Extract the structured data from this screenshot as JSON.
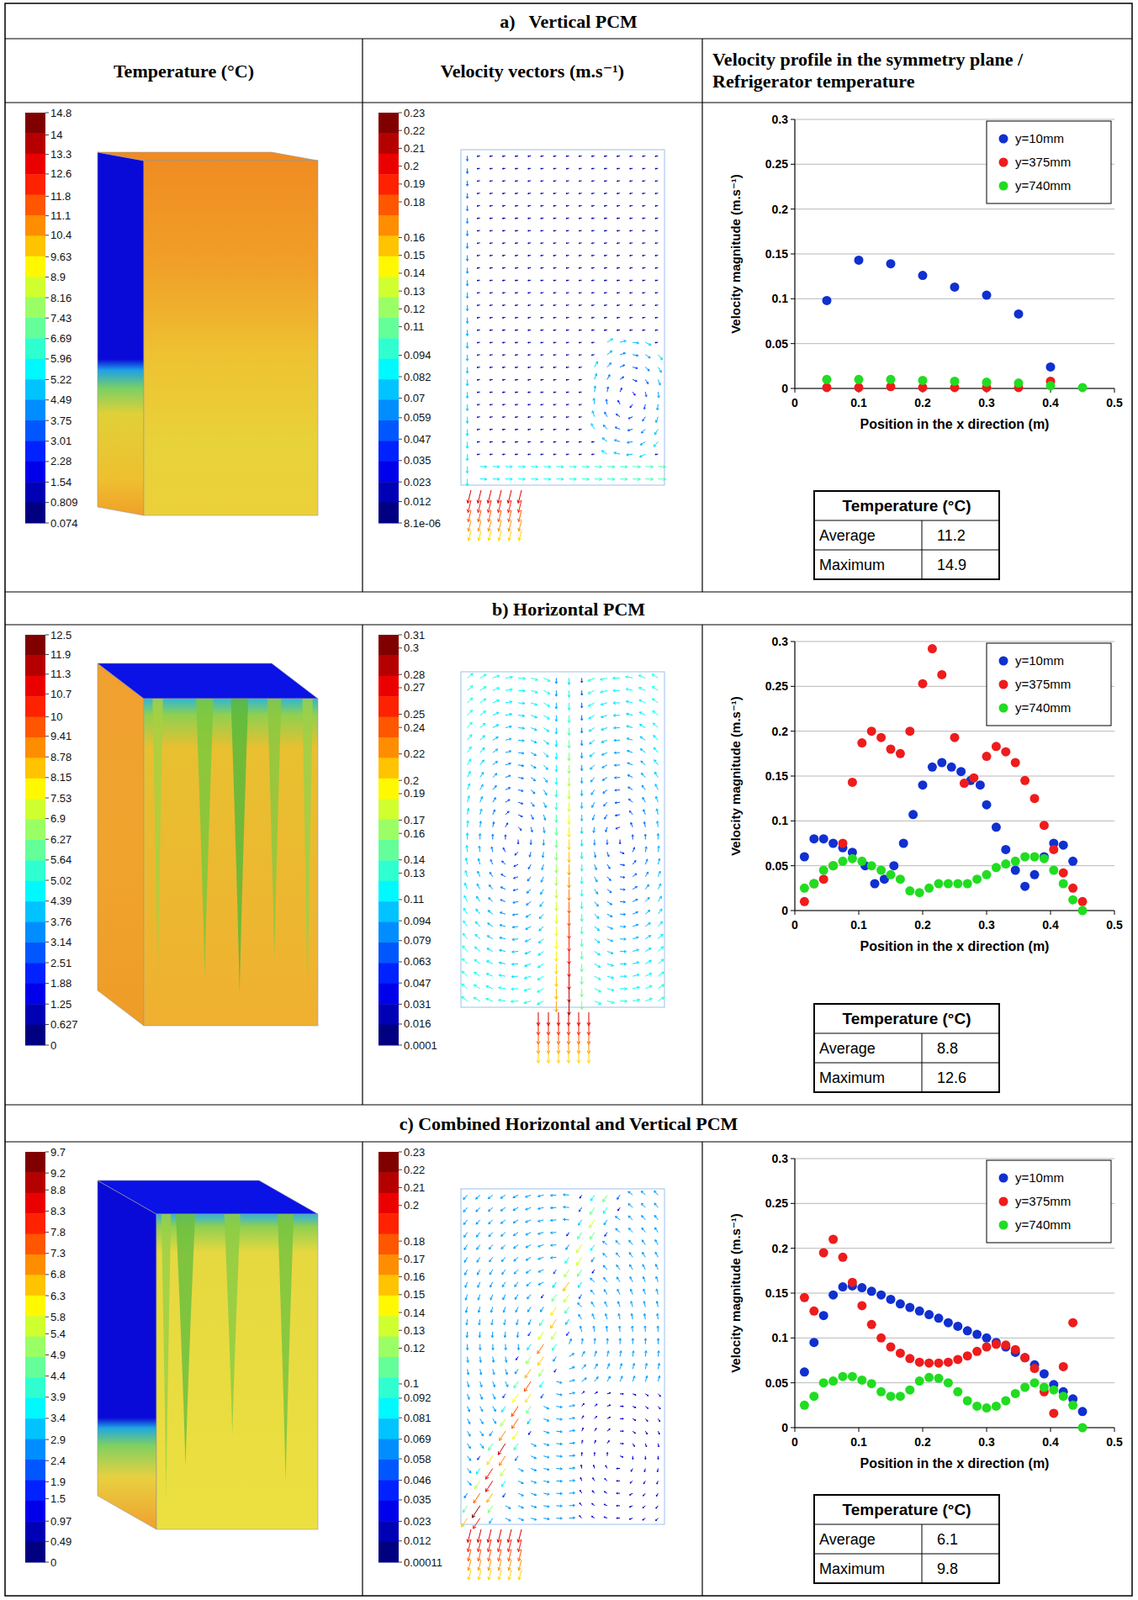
{
  "column_heads": [
    "Temperature (°C)",
    "Velocity vectors (m.s⁻¹)",
    "Velocity profile in the symmetry plane / Refrigerator temperature"
  ],
  "panels": [
    {
      "title": "a)   Vertical PCM",
      "temperature_colorbar": {
        "range": [
          0.074,
          14.8
        ],
        "ticks": [
          14.8,
          14,
          13.3,
          12.6,
          11.8,
          11.1,
          10.4,
          9.63,
          8.9,
          8.16,
          7.43,
          6.69,
          5.96,
          5.22,
          4.49,
          3.75,
          3.01,
          2.28,
          1.54,
          0.809,
          0.074
        ]
      },
      "velocity_colorbar": {
        "range": [
          8.1e-06,
          0.23
        ],
        "ticks": [
          0.23,
          0.22,
          0.21,
          0.2,
          0.19,
          0.18,
          0.16,
          0.15,
          0.14,
          0.13,
          0.12,
          0.11,
          0.094,
          0.082,
          0.07,
          0.059,
          0.047,
          0.035,
          0.023,
          0.012,
          {
            "value": 8.1e-06,
            "label": "8.1e-06"
          }
        ]
      },
      "table": {
        "header": "Temperature (°C)",
        "rows": [
          {
            "label": "Average",
            "value": 11.2
          },
          {
            "label": "Maximum",
            "value": 14.9
          }
        ]
      }
    },
    {
      "title": "b) Horizontal PCM",
      "temperature_colorbar": {
        "range": [
          0,
          12.5
        ],
        "ticks": [
          12.5,
          11.9,
          11.3,
          10.7,
          10,
          9.41,
          8.78,
          8.15,
          7.53,
          6.9,
          6.27,
          5.64,
          5.02,
          4.39,
          3.76,
          3.14,
          2.51,
          1.88,
          1.25,
          0.627,
          0
        ]
      },
      "velocity_colorbar": {
        "range": [
          0.0001,
          0.31
        ],
        "ticks": [
          0.31,
          0.3,
          0.28,
          0.27,
          0.25,
          0.24,
          0.22,
          0.2,
          0.19,
          0.17,
          0.16,
          0.14,
          0.13,
          0.11,
          0.094,
          0.079,
          0.063,
          0.047,
          0.031,
          0.016,
          0.0001
        ]
      },
      "table": {
        "header": "Temperature (°C)",
        "rows": [
          {
            "label": "Average",
            "value": 8.8
          },
          {
            "label": "Maximum",
            "value": 12.6
          }
        ]
      }
    },
    {
      "title": "c) Combined Horizontal and Vertical PCM",
      "temperature_colorbar": {
        "range": [
          0,
          9.7
        ],
        "ticks": [
          9.7,
          9.2,
          8.8,
          8.3,
          7.8,
          7.3,
          6.8,
          6.3,
          5.8,
          5.4,
          4.9,
          4.4,
          3.9,
          3.4,
          2.9,
          2.4,
          1.9,
          1.5,
          0.97,
          0.49,
          0
        ]
      },
      "velocity_colorbar": {
        "range": [
          0.00011,
          0.23
        ],
        "ticks": [
          0.23,
          0.22,
          0.21,
          0.2,
          0.18,
          0.17,
          0.16,
          0.15,
          0.14,
          0.13,
          0.12,
          0.1,
          0.092,
          0.081,
          0.069,
          0.058,
          0.046,
          0.035,
          0.023,
          0.012,
          0.00011
        ]
      },
      "table": {
        "header": "Temperature (°C)",
        "rows": [
          {
            "label": "Average",
            "value": 6.1
          },
          {
            "label": "Maximum",
            "value": 9.8
          }
        ]
      }
    }
  ],
  "chart_data": [
    {
      "type": "scatter",
      "x_label": "Position in the x direction (m)",
      "y_label": "Velocity magnitude (m.s⁻¹)",
      "xlim": [
        0,
        0.5
      ],
      "xticks": [
        0,
        0.1,
        0.2,
        0.3,
        0.4,
        0.5
      ],
      "ylim": [
        0,
        0.3
      ],
      "yticks": [
        0,
        0.05,
        0.1,
        0.15,
        0.2,
        0.25,
        0.3
      ],
      "grid": true,
      "legend": "upper right",
      "series": [
        {
          "name": "y=10mm",
          "color": "#1030d0",
          "marker": "circle",
          "x": [
            0.05,
            0.1,
            0.15,
            0.2,
            0.25,
            0.3,
            0.35,
            0.4
          ],
          "values": [
            0.098,
            0.143,
            0.139,
            0.126,
            0.113,
            0.104,
            0.083,
            0.024
          ]
        },
        {
          "name": "y=375mm",
          "color": "#ee1c1c",
          "marker": "circle",
          "x": [
            0.05,
            0.1,
            0.15,
            0.2,
            0.25,
            0.3,
            0.35,
            0.4
          ],
          "values": [
            0.001,
            0.001,
            0.002,
            0.001,
            0.001,
            0.001,
            0.001,
            0.008
          ]
        },
        {
          "name": "y=740mm",
          "color": "#20dd20",
          "marker": "circle",
          "x": [
            0.05,
            0.1,
            0.15,
            0.2,
            0.25,
            0.3,
            0.35,
            0.4,
            0.45
          ],
          "values": [
            0.01,
            0.01,
            0.01,
            0.009,
            0.008,
            0.007,
            0.006,
            0.003,
            0.001
          ]
        }
      ]
    },
    {
      "type": "scatter",
      "x_label": "Position in the x direction (m)",
      "y_label": "Velocity magnitude (m.s⁻¹)",
      "xlim": [
        0,
        0.5
      ],
      "xticks": [
        0,
        0.1,
        0.2,
        0.3,
        0.4,
        0.5
      ],
      "ylim": [
        0,
        0.3
      ],
      "yticks": [
        0,
        0.05,
        0.1,
        0.15,
        0.2,
        0.25,
        0.3
      ],
      "grid": true,
      "legend": "upper right",
      "series": [
        {
          "name": "y=10mm",
          "color": "#1030d0",
          "marker": "circle",
          "x": [
            0.015,
            0.03,
            0.045,
            0.06,
            0.075,
            0.09,
            0.11,
            0.125,
            0.14,
            0.155,
            0.17,
            0.185,
            0.2,
            0.215,
            0.23,
            0.245,
            0.26,
            0.275,
            0.29,
            0.3,
            0.315,
            0.33,
            0.345,
            0.36,
            0.375,
            0.39,
            0.405,
            0.42,
            0.435
          ],
          "values": [
            0.06,
            0.08,
            0.08,
            0.075,
            0.07,
            0.065,
            0.05,
            0.03,
            0.035,
            0.05,
            0.075,
            0.107,
            0.14,
            0.16,
            0.165,
            0.16,
            0.155,
            0.145,
            0.14,
            0.118,
            0.093,
            0.068,
            0.045,
            0.027,
            0.04,
            0.06,
            0.075,
            0.073,
            0.055
          ]
        },
        {
          "name": "y=375mm",
          "color": "#ee1c1c",
          "marker": "circle",
          "x": [
            0.015,
            0.03,
            0.045,
            0.06,
            0.075,
            0.09,
            0.105,
            0.12,
            0.135,
            0.15,
            0.165,
            0.18,
            0.2,
            0.215,
            0.23,
            0.25,
            0.265,
            0.28,
            0.3,
            0.315,
            0.33,
            0.345,
            0.36,
            0.375,
            0.39,
            0.405,
            0.42,
            0.435,
            0.45
          ],
          "values": [
            0.01,
            0.03,
            0.035,
            0.05,
            0.075,
            0.143,
            0.187,
            0.2,
            0.193,
            0.18,
            0.175,
            0.2,
            0.253,
            0.292,
            0.263,
            0.193,
            0.142,
            0.148,
            0.172,
            0.183,
            0.177,
            0.165,
            0.145,
            0.125,
            0.095,
            0.068,
            0.042,
            0.025,
            0.01
          ]
        },
        {
          "name": "y=740mm",
          "color": "#20dd20",
          "marker": "circle",
          "x": [
            0.015,
            0.03,
            0.045,
            0.06,
            0.075,
            0.09,
            0.105,
            0.12,
            0.135,
            0.15,
            0.165,
            0.18,
            0.195,
            0.21,
            0.225,
            0.24,
            0.255,
            0.27,
            0.285,
            0.3,
            0.315,
            0.33,
            0.345,
            0.36,
            0.375,
            0.39,
            0.405,
            0.42,
            0.435,
            0.45
          ],
          "values": [
            0.025,
            0.03,
            0.045,
            0.05,
            0.055,
            0.058,
            0.055,
            0.05,
            0.045,
            0.04,
            0.035,
            0.022,
            0.02,
            0.025,
            0.03,
            0.03,
            0.03,
            0.03,
            0.035,
            0.04,
            0.048,
            0.052,
            0.055,
            0.06,
            0.06,
            0.058,
            0.045,
            0.03,
            0.012,
            0
          ]
        }
      ]
    },
    {
      "type": "scatter",
      "x_label": "Position in the x direction (m)",
      "y_label": "Velocity magnitude (m.s⁻¹)",
      "xlim": [
        0,
        0.5
      ],
      "xticks": [
        0,
        0.1,
        0.2,
        0.3,
        0.4,
        0.5
      ],
      "ylim": [
        0,
        0.3
      ],
      "yticks": [
        0,
        0.05,
        0.1,
        0.15,
        0.2,
        0.25,
        0.3
      ],
      "grid": true,
      "legend": "upper right",
      "series": [
        {
          "name": "y=10mm",
          "color": "#1030d0",
          "marker": "circle",
          "x": [
            0.015,
            0.03,
            0.045,
            0.06,
            0.075,
            0.09,
            0.105,
            0.12,
            0.135,
            0.15,
            0.165,
            0.18,
            0.195,
            0.21,
            0.225,
            0.24,
            0.255,
            0.27,
            0.285,
            0.3,
            0.315,
            0.33,
            0.345,
            0.36,
            0.375,
            0.39,
            0.405,
            0.42,
            0.435,
            0.45
          ],
          "values": [
            0.062,
            0.095,
            0.125,
            0.148,
            0.157,
            0.158,
            0.156,
            0.152,
            0.148,
            0.143,
            0.138,
            0.134,
            0.13,
            0.126,
            0.122,
            0.117,
            0.113,
            0.108,
            0.104,
            0.1,
            0.095,
            0.09,
            0.084,
            0.078,
            0.07,
            0.06,
            0.048,
            0.04,
            0.032,
            0.018
          ]
        },
        {
          "name": "y=375mm",
          "color": "#ee1c1c",
          "marker": "circle",
          "x": [
            0.015,
            0.03,
            0.045,
            0.06,
            0.075,
            0.09,
            0.105,
            0.12,
            0.135,
            0.15,
            0.165,
            0.18,
            0.195,
            0.21,
            0.225,
            0.24,
            0.255,
            0.27,
            0.285,
            0.3,
            0.315,
            0.33,
            0.345,
            0.36,
            0.375,
            0.39,
            0.405,
            0.42,
            0.435
          ],
          "values": [
            0.145,
            0.13,
            0.195,
            0.21,
            0.19,
            0.162,
            0.136,
            0.115,
            0.1,
            0.09,
            0.083,
            0.077,
            0.073,
            0.072,
            0.072,
            0.073,
            0.076,
            0.08,
            0.085,
            0.09,
            0.093,
            0.092,
            0.087,
            0.078,
            0.066,
            0.04,
            0.016,
            0.068,
            0.117
          ]
        },
        {
          "name": "y=740mm",
          "color": "#20dd20",
          "marker": "circle",
          "x": [
            0.015,
            0.03,
            0.045,
            0.06,
            0.075,
            0.09,
            0.105,
            0.12,
            0.135,
            0.15,
            0.165,
            0.18,
            0.195,
            0.21,
            0.225,
            0.24,
            0.255,
            0.27,
            0.285,
            0.3,
            0.315,
            0.33,
            0.345,
            0.36,
            0.375,
            0.39,
            0.405,
            0.42,
            0.435,
            0.45
          ],
          "values": [
            0.025,
            0.035,
            0.05,
            0.052,
            0.057,
            0.057,
            0.053,
            0.049,
            0.04,
            0.035,
            0.035,
            0.042,
            0.052,
            0.056,
            0.055,
            0.05,
            0.04,
            0.03,
            0.024,
            0.022,
            0.024,
            0.03,
            0.038,
            0.045,
            0.05,
            0.045,
            0.042,
            0.035,
            0.025,
            0
          ]
        }
      ]
    }
  ]
}
